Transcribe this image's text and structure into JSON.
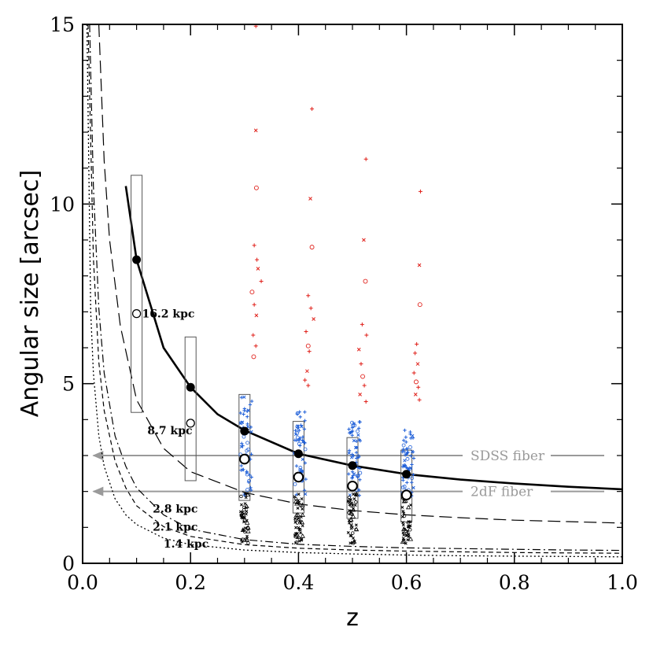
{
  "chart_data": {
    "type": "scatter",
    "title": "",
    "xlabel": "z",
    "ylabel": "Angular size   [arcsec]",
    "xlim": [
      0,
      1
    ],
    "ylim": [
      0,
      15
    ],
    "x_ticks": [
      0.0,
      0.2,
      0.4,
      0.6,
      0.8,
      1.0
    ],
    "x_tick_labels": [
      "0.0",
      "0.2",
      "0.4",
      "0.6",
      "0.8",
      "1.0"
    ],
    "y_ticks": [
      0,
      5,
      10,
      15
    ],
    "y_tick_labels": [
      "0",
      "5",
      "10",
      "15"
    ],
    "grid": false,
    "curves": [
      {
        "label": "16.2 kpc",
        "style": "solid-thick",
        "label_at": [
          0.11,
          6.95
        ],
        "points": [
          [
            0.08,
            10.5
          ],
          [
            0.1,
            8.45
          ],
          [
            0.15,
            6.0
          ],
          [
            0.2,
            4.9
          ],
          [
            0.25,
            4.15
          ],
          [
            0.3,
            3.7
          ],
          [
            0.4,
            3.05
          ],
          [
            0.5,
            2.72
          ],
          [
            0.6,
            2.48
          ],
          [
            0.7,
            2.33
          ],
          [
            0.8,
            2.22
          ],
          [
            0.9,
            2.13
          ],
          [
            1.0,
            2.06
          ]
        ]
      },
      {
        "label": "8.7 kpc",
        "style": "long-dash",
        "label_at": [
          0.12,
          3.7
        ],
        "points": [
          [
            0.03,
            15
          ],
          [
            0.04,
            11.2
          ],
          [
            0.05,
            9.0
          ],
          [
            0.07,
            6.6
          ],
          [
            0.1,
            4.55
          ],
          [
            0.15,
            3.2
          ],
          [
            0.2,
            2.55
          ],
          [
            0.3,
            1.97
          ],
          [
            0.4,
            1.65
          ],
          [
            0.5,
            1.47
          ],
          [
            0.6,
            1.35
          ],
          [
            0.7,
            1.27
          ],
          [
            0.8,
            1.2
          ],
          [
            0.9,
            1.16
          ],
          [
            1.0,
            1.12
          ]
        ]
      },
      {
        "label": "2.8 kpc",
        "style": "dash-dot",
        "label_at": [
          0.13,
          1.52
        ],
        "points": [
          [
            0.013,
            15
          ],
          [
            0.02,
            10.5
          ],
          [
            0.03,
            7.1
          ],
          [
            0.04,
            5.3
          ],
          [
            0.06,
            3.55
          ],
          [
            0.08,
            2.7
          ],
          [
            0.1,
            2.1
          ],
          [
            0.15,
            1.35
          ],
          [
            0.2,
            0.95
          ],
          [
            0.3,
            0.66
          ],
          [
            0.4,
            0.53
          ],
          [
            0.5,
            0.47
          ],
          [
            0.6,
            0.43
          ],
          [
            0.7,
            0.41
          ],
          [
            0.8,
            0.39
          ],
          [
            0.9,
            0.37
          ],
          [
            1.0,
            0.36
          ]
        ]
      },
      {
        "label": "2.1 kpc",
        "style": "short-dash",
        "label_at": [
          0.13,
          1.02
        ],
        "points": [
          [
            0.01,
            15
          ],
          [
            0.02,
            8.5
          ],
          [
            0.03,
            5.6
          ],
          [
            0.04,
            4.25
          ],
          [
            0.06,
            2.85
          ],
          [
            0.08,
            2.1
          ],
          [
            0.1,
            1.6
          ],
          [
            0.15,
            1.02
          ],
          [
            0.2,
            0.75
          ],
          [
            0.3,
            0.52
          ],
          [
            0.4,
            0.42
          ],
          [
            0.5,
            0.37
          ],
          [
            0.6,
            0.34
          ],
          [
            0.7,
            0.32
          ],
          [
            0.8,
            0.3
          ],
          [
            0.9,
            0.29
          ],
          [
            1.0,
            0.28
          ]
        ]
      },
      {
        "label": "1.4 kpc",
        "style": "dotted",
        "label_at": [
          0.15,
          0.55
        ],
        "points": [
          [
            0.008,
            15
          ],
          [
            0.015,
            7.0
          ],
          [
            0.02,
            5.3
          ],
          [
            0.03,
            3.55
          ],
          [
            0.04,
            2.7
          ],
          [
            0.06,
            1.8
          ],
          [
            0.08,
            1.35
          ],
          [
            0.1,
            1.08
          ],
          [
            0.15,
            0.7
          ],
          [
            0.2,
            0.52
          ],
          [
            0.3,
            0.37
          ],
          [
            0.4,
            0.3
          ],
          [
            0.5,
            0.26
          ],
          [
            0.6,
            0.23
          ],
          [
            0.7,
            0.21
          ],
          [
            0.8,
            0.2
          ],
          [
            0.9,
            0.19
          ],
          [
            1.0,
            0.18
          ]
        ]
      }
    ],
    "fibers": [
      {
        "label": "SDSS fiber",
        "y": 3.0
      },
      {
        "label": "2dF fiber",
        "y": 2.0
      }
    ],
    "boxes": [
      {
        "x": 0.1,
        "low": 4.2,
        "high": 10.8
      },
      {
        "x": 0.2,
        "low": 2.3,
        "high": 6.3
      },
      {
        "x": 0.3,
        "low": 1.75,
        "high": 4.7
      },
      {
        "x": 0.4,
        "low": 1.4,
        "high": 3.95
      },
      {
        "x": 0.5,
        "low": 1.25,
        "high": 3.5
      },
      {
        "x": 0.6,
        "low": 1.15,
        "high": 3.15
      }
    ],
    "filled_markers": [
      [
        0.1,
        8.45
      ],
      [
        0.2,
        4.9
      ],
      [
        0.3,
        3.68
      ],
      [
        0.4,
        3.05
      ],
      [
        0.5,
        2.72
      ],
      [
        0.6,
        2.48
      ]
    ],
    "open_markers": [
      [
        0.1,
        6.95
      ],
      [
        0.2,
        3.9
      ],
      [
        0.3,
        2.9
      ],
      [
        0.4,
        2.4
      ],
      [
        0.5,
        2.15
      ],
      [
        0.6,
        1.9
      ]
    ],
    "scatter_groups": [
      {
        "z": 0.3,
        "red": [
          [
            0.321,
            14.95
          ],
          [
            0.321,
            12.05
          ],
          [
            0.322,
            10.45
          ],
          [
            0.318,
            8.85
          ],
          [
            0.323,
            8.45
          ],
          [
            0.325,
            8.2
          ],
          [
            0.331,
            7.85
          ],
          [
            0.314,
            7.55
          ],
          [
            0.318,
            7.2
          ],
          [
            0.322,
            6.9
          ],
          [
            0.316,
            6.35
          ],
          [
            0.321,
            6.05
          ],
          [
            0.317,
            5.75
          ]
        ]
      },
      {
        "z": 0.4,
        "red": [
          [
            0.425,
            12.65
          ],
          [
            0.422,
            10.15
          ],
          [
            0.425,
            8.8
          ],
          [
            0.418,
            7.45
          ],
          [
            0.423,
            7.1
          ],
          [
            0.428,
            6.8
          ],
          [
            0.414,
            6.45
          ],
          [
            0.418,
            6.05
          ],
          [
            0.42,
            5.9
          ],
          [
            0.416,
            5.35
          ],
          [
            0.412,
            5.1
          ],
          [
            0.418,
            4.95
          ]
        ]
      },
      {
        "z": 0.5,
        "red": [
          [
            0.525,
            11.25
          ],
          [
            0.521,
            9.0
          ],
          [
            0.524,
            7.85
          ],
          [
            0.518,
            6.65
          ],
          [
            0.526,
            6.35
          ],
          [
            0.512,
            5.95
          ],
          [
            0.516,
            5.55
          ],
          [
            0.519,
            5.2
          ],
          [
            0.522,
            4.95
          ],
          [
            0.514,
            4.7
          ],
          [
            0.525,
            4.5
          ]
        ]
      },
      {
        "z": 0.6,
        "red": [
          [
            0.626,
            10.35
          ],
          [
            0.624,
            8.3
          ],
          [
            0.625,
            7.2
          ],
          [
            0.619,
            6.1
          ],
          [
            0.616,
            5.85
          ],
          [
            0.621,
            5.55
          ],
          [
            0.614,
            5.3
          ],
          [
            0.618,
            5.05
          ],
          [
            0.622,
            4.9
          ],
          [
            0.617,
            4.7
          ],
          [
            0.624,
            4.55
          ]
        ]
      }
    ]
  },
  "colors": {
    "axis": "#000000",
    "fiber": "#9a9a9a",
    "red_points": "#e0201a",
    "blue_points": "#1f5fd8",
    "black_points": "#000000"
  }
}
